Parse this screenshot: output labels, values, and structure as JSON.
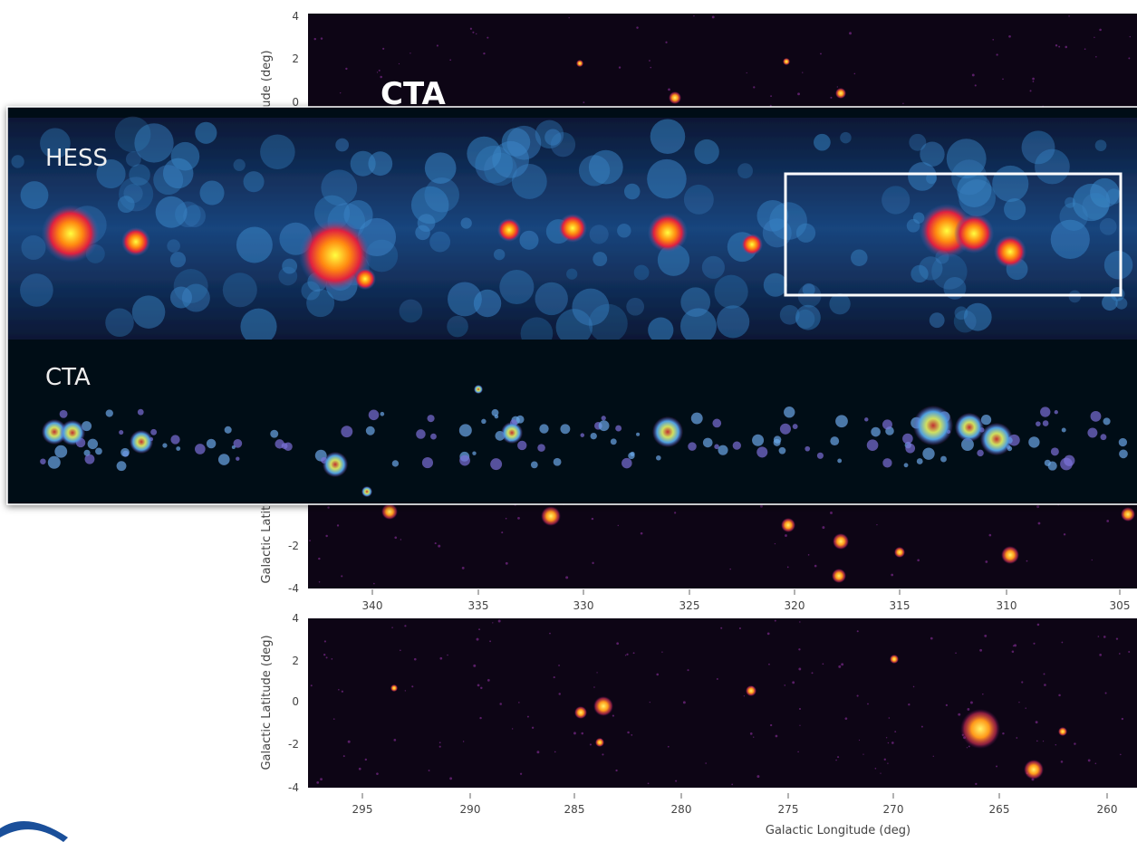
{
  "background_slide": {
    "panel_top": {
      "label": "CTA",
      "y_label": "Galactic Latitude (deg)",
      "y_ticks": [
        4,
        2,
        0
      ]
    },
    "panel_middle": {
      "y_label": "Galactic Latitude (deg)",
      "y_ticks": [
        -2,
        -4
      ],
      "x_ticks": [
        340,
        335,
        330,
        325,
        320,
        315,
        310,
        305
      ]
    },
    "panel_bottom": {
      "y_label": "Galactic Latitude (deg)",
      "y_ticks": [
        4,
        2,
        0,
        -2,
        -4
      ],
      "x_ticks": [
        295,
        290,
        285,
        280,
        275,
        270,
        265,
        260
      ],
      "x_label": "Galactic Longitude (deg)"
    }
  },
  "inset": {
    "hess_label": "HESS",
    "cta_label": "CTA"
  }
}
